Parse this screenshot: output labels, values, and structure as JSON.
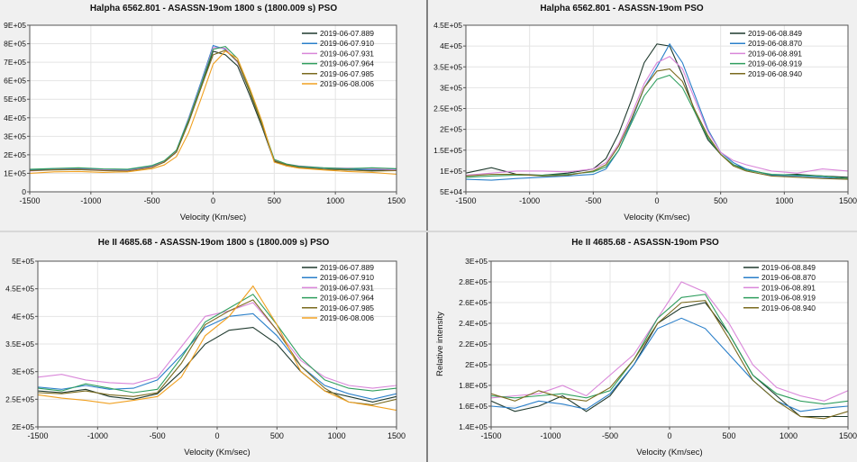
{
  "chart_data": [
    {
      "type": "line",
      "title": "Halpha 6562.801 - ASASSN-19om   1800 s (1800.009 s)   PSO",
      "xlabel": "Velocity (Km/sec)",
      "ylabel": "",
      "xlim": [
        -1500,
        1500
      ],
      "ylim": [
        0,
        900000
      ],
      "xticks": [
        -1500,
        -1000,
        -500,
        0,
        500,
        1000,
        1500
      ],
      "xtick_labels": [
        "-1500",
        "-1000",
        "-500",
        "0",
        "500",
        "1000",
        "1500"
      ],
      "yticks": [
        0,
        100000,
        200000,
        300000,
        400000,
        500000,
        600000,
        700000,
        800000,
        900000
      ],
      "ytick_labels": [
        "0",
        "1E+05",
        "2E+05",
        "3E+05",
        "4E+05",
        "5E+05",
        "6E+05",
        "7E+05",
        "8E+05",
        "9E+05"
      ],
      "x": [
        -1500,
        -1300,
        -1100,
        -900,
        -700,
        -500,
        -400,
        -300,
        -200,
        -100,
        0,
        100,
        200,
        300,
        400,
        500,
        600,
        700,
        900,
        1100,
        1300,
        1500
      ],
      "series": [
        {
          "name": "2019-06-07.889",
          "color": "#1f3a2e",
          "values": [
            120000,
            122000,
            125000,
            118000,
            120000,
            138000,
            160000,
            215000,
            380000,
            560000,
            760000,
            740000,
            680000,
            520000,
            350000,
            165000,
            140000,
            130000,
            122000,
            118000,
            115000,
            120000
          ]
        },
        {
          "name": "2019-06-07.910",
          "color": "#2a7fc9",
          "values": [
            118000,
            125000,
            128000,
            122000,
            118000,
            140000,
            165000,
            225000,
            400000,
            590000,
            790000,
            770000,
            700000,
            540000,
            360000,
            170000,
            145000,
            135000,
            128000,
            122000,
            120000,
            122000
          ]
        },
        {
          "name": "2019-06-07.931",
          "color": "#d986d9",
          "values": [
            112000,
            120000,
            122000,
            118000,
            115000,
            135000,
            162000,
            220000,
            395000,
            580000,
            780000,
            775000,
            700000,
            545000,
            365000,
            172000,
            150000,
            140000,
            130000,
            128000,
            125000,
            118000
          ]
        },
        {
          "name": "2019-06-07.964",
          "color": "#2f9e5e",
          "values": [
            122000,
            126000,
            130000,
            124000,
            122000,
            142000,
            168000,
            225000,
            390000,
            575000,
            770000,
            785000,
            720000,
            550000,
            370000,
            175000,
            150000,
            138000,
            130000,
            125000,
            130000,
            125000
          ]
        },
        {
          "name": "2019-06-07.985",
          "color": "#7a6a1e",
          "values": [
            115000,
            118000,
            120000,
            115000,
            112000,
            132000,
            160000,
            215000,
            375000,
            560000,
            740000,
            765000,
            705000,
            540000,
            360000,
            168000,
            145000,
            132000,
            122000,
            118000,
            112000,
            115000
          ]
        },
        {
          "name": "2019-06-08.006",
          "color": "#f0a020",
          "values": [
            100000,
            108000,
            110000,
            105000,
            108000,
            125000,
            145000,
            190000,
            320000,
            500000,
            690000,
            760000,
            720000,
            560000,
            380000,
            160000,
            140000,
            128000,
            118000,
            110000,
            105000,
            95000
          ]
        }
      ]
    },
    {
      "type": "line",
      "title": "Halpha 6562.801 - ASASSN-19om   PSO",
      "xlabel": "Velocity (Km/sec)",
      "ylabel": "",
      "xlim": [
        -1500,
        1500
      ],
      "ylim": [
        50000,
        450000
      ],
      "xticks": [
        -1500,
        -1000,
        -500,
        0,
        500,
        1000,
        1500
      ],
      "xtick_labels": [
        "-1500",
        "-1000",
        "-500",
        "0",
        "500",
        "1000",
        "1500"
      ],
      "yticks": [
        50000,
        100000,
        150000,
        200000,
        250000,
        300000,
        350000,
        400000,
        450000
      ],
      "ytick_labels": [
        "5E+04",
        "1E+05",
        "1.5E+05",
        "2E+05",
        "2.5E+05",
        "3E+05",
        "3.5E+05",
        "4E+05",
        "4.5E+05"
      ],
      "x": [
        -1500,
        -1300,
        -1100,
        -900,
        -700,
        -500,
        -400,
        -300,
        -200,
        -100,
        0,
        100,
        200,
        300,
        400,
        500,
        600,
        700,
        900,
        1100,
        1300,
        1500
      ],
      "series": [
        {
          "name": "2019-06-08.849",
          "color": "#1f3a2e",
          "values": [
            95000,
            108000,
            92000,
            90000,
            95000,
            105000,
            130000,
            190000,
            270000,
            360000,
            405000,
            400000,
            330000,
            240000,
            175000,
            140000,
            115000,
            105000,
            90000,
            92000,
            88000,
            85000
          ]
        },
        {
          "name": "2019-06-08.870",
          "color": "#2a7fc9",
          "values": [
            80000,
            78000,
            82000,
            85000,
            88000,
            92000,
            105000,
            150000,
            220000,
            300000,
            350000,
            405000,
            360000,
            280000,
            200000,
            145000,
            120000,
            105000,
            90000,
            88000,
            85000,
            80000
          ]
        },
        {
          "name": "2019-06-08.891",
          "color": "#d986d9",
          "values": [
            90000,
            95000,
            100000,
            100000,
            98000,
            105000,
            120000,
            165000,
            235000,
            310000,
            360000,
            375000,
            345000,
            270000,
            195000,
            145000,
            125000,
            115000,
            100000,
            95000,
            105000,
            100000
          ]
        },
        {
          "name": "2019-06-08.919",
          "color": "#2f9e5e",
          "values": [
            85000,
            88000,
            90000,
            90000,
            92000,
            98000,
            110000,
            150000,
            215000,
            280000,
            320000,
            330000,
            300000,
            240000,
            180000,
            140000,
            115000,
            102000,
            92000,
            90000,
            88000,
            82000
          ]
        },
        {
          "name": "2019-06-08.940",
          "color": "#7a6a1e",
          "values": [
            88000,
            92000,
            92000,
            88000,
            90000,
            100000,
            115000,
            160000,
            225000,
            300000,
            340000,
            345000,
            315000,
            245000,
            185000,
            140000,
            112000,
            100000,
            88000,
            85000,
            82000,
            80000
          ]
        }
      ]
    },
    {
      "type": "line",
      "title": "He II 4685.68 - ASASSN-19om   1800 s (1800.009 s)   PSO",
      "xlabel": "Velocity (Km/sec)",
      "ylabel": "",
      "xlim": [
        -1500,
        1500
      ],
      "ylim": [
        200000,
        500000
      ],
      "xticks": [
        -1500,
        -1000,
        -500,
        0,
        500,
        1000,
        1500
      ],
      "xtick_labels": [
        "-1500",
        "-1000",
        "-500",
        "0",
        "500",
        "1000",
        "1500"
      ],
      "yticks": [
        200000,
        250000,
        300000,
        350000,
        400000,
        450000,
        500000
      ],
      "ytick_labels": [
        "2E+05",
        "2.5E+05",
        "3E+05",
        "3.5E+05",
        "4E+05",
        "4.5E+05",
        "5E+05"
      ],
      "x": [
        -1500,
        -1300,
        -1100,
        -900,
        -700,
        -500,
        -300,
        -100,
        100,
        300,
        500,
        700,
        900,
        1100,
        1300,
        1500
      ],
      "series": [
        {
          "name": "2019-06-07.889",
          "color": "#1f3a2e",
          "values": [
            265000,
            262000,
            268000,
            255000,
            250000,
            260000,
            300000,
            350000,
            375000,
            380000,
            350000,
            300000,
            265000,
            255000,
            245000,
            255000
          ]
        },
        {
          "name": "2019-06-07.910",
          "color": "#2a7fc9",
          "values": [
            272000,
            268000,
            275000,
            268000,
            270000,
            285000,
            330000,
            380000,
            400000,
            405000,
            365000,
            310000,
            275000,
            260000,
            250000,
            260000
          ]
        },
        {
          "name": "2019-06-07.931",
          "color": "#d986d9",
          "values": [
            290000,
            295000,
            285000,
            280000,
            278000,
            290000,
            345000,
            400000,
            410000,
            425000,
            375000,
            320000,
            290000,
            275000,
            270000,
            275000
          ]
        },
        {
          "name": "2019-06-07.964",
          "color": "#2f9e5e",
          "values": [
            270000,
            265000,
            278000,
            270000,
            262000,
            268000,
            325000,
            390000,
            415000,
            440000,
            385000,
            325000,
            285000,
            270000,
            265000,
            270000
          ]
        },
        {
          "name": "2019-06-07.985",
          "color": "#7a6a1e",
          "values": [
            262000,
            260000,
            265000,
            258000,
            255000,
            262000,
            315000,
            385000,
            410000,
            430000,
            375000,
            310000,
            270000,
            245000,
            240000,
            250000
          ]
        },
        {
          "name": "2019-06-08.006",
          "color": "#f0a020",
          "values": [
            258000,
            252000,
            248000,
            242000,
            248000,
            255000,
            290000,
            365000,
            400000,
            455000,
            385000,
            300000,
            265000,
            245000,
            238000,
            230000
          ]
        }
      ]
    },
    {
      "type": "line",
      "title": "He II 4685.68 - ASASSN-19om   PSO",
      "xlabel": "Velocity (Km/sec)",
      "ylabel": "Relative intensity",
      "xlim": [
        -1500,
        1500
      ],
      "ylim": [
        140000,
        300000
      ],
      "xticks": [
        -1500,
        -1000,
        -500,
        0,
        500,
        1000,
        1500
      ],
      "xtick_labels": [
        "-1500",
        "-1000",
        "-500",
        "0",
        "500",
        "1000",
        "1500"
      ],
      "yticks": [
        140000,
        160000,
        180000,
        200000,
        220000,
        240000,
        260000,
        280000,
        300000
      ],
      "ytick_labels": [
        "1.4E+05",
        "1.6E+05",
        "1.8E+05",
        "2E+05",
        "2.2E+05",
        "2.4E+05",
        "2.6E+05",
        "2.8E+05",
        "3E+05"
      ],
      "x": [
        -1500,
        -1300,
        -1100,
        -900,
        -700,
        -500,
        -300,
        -100,
        100,
        300,
        500,
        700,
        900,
        1100,
        1300,
        1500
      ],
      "series": [
        {
          "name": "2019-06-08.849",
          "color": "#1f3a2e",
          "values": [
            165000,
            155000,
            160000,
            170000,
            155000,
            170000,
            200000,
            240000,
            255000,
            260000,
            230000,
            190000,
            170000,
            150000,
            150000,
            150000
          ]
        },
        {
          "name": "2019-06-08.870",
          "color": "#2a7fc9",
          "values": [
            160000,
            158000,
            165000,
            162000,
            157000,
            172000,
            200000,
            235000,
            245000,
            235000,
            210000,
            185000,
            165000,
            155000,
            158000,
            160000
          ]
        },
        {
          "name": "2019-06-08.891",
          "color": "#d986d9",
          "values": [
            168000,
            170000,
            172000,
            180000,
            170000,
            190000,
            210000,
            245000,
            280000,
            270000,
            240000,
            200000,
            178000,
            170000,
            165000,
            175000
          ]
        },
        {
          "name": "2019-06-08.919",
          "color": "#2f9e5e",
          "values": [
            170000,
            168000,
            170000,
            172000,
            168000,
            175000,
            205000,
            245000,
            265000,
            268000,
            230000,
            190000,
            172000,
            165000,
            162000,
            165000
          ]
        },
        {
          "name": "2019-06-08.940",
          "color": "#7a6a1e",
          "values": [
            172000,
            165000,
            175000,
            168000,
            165000,
            178000,
            205000,
            240000,
            260000,
            262000,
            225000,
            185000,
            165000,
            150000,
            148000,
            155000
          ]
        }
      ]
    }
  ]
}
